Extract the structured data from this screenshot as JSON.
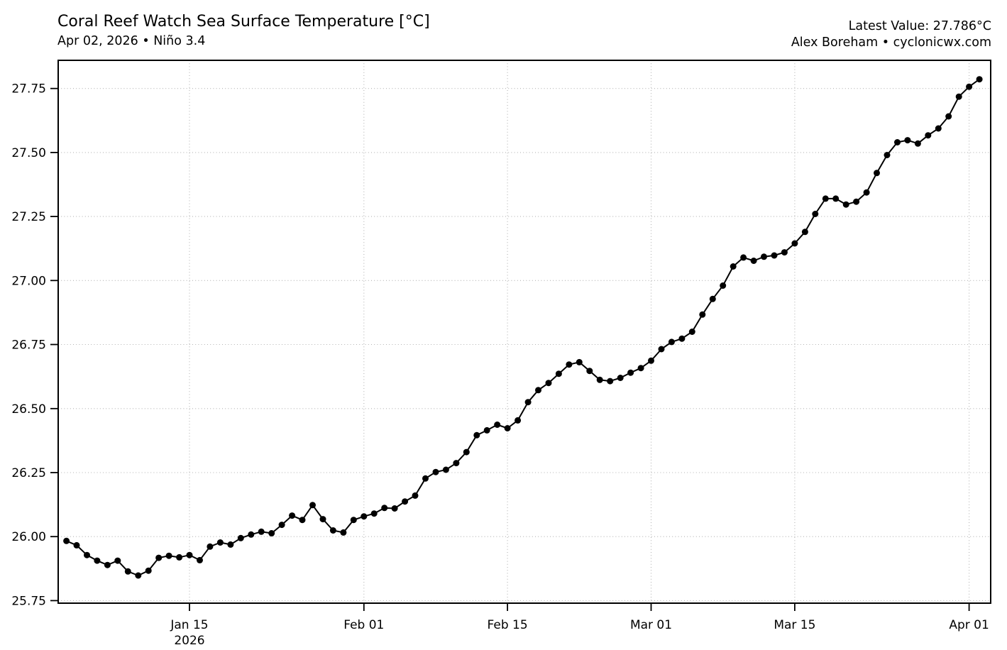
{
  "header": {
    "title": "Coral Reef Watch Sea Surface Temperature [°C]",
    "subtitle": "Apr 02, 2026 • Niño 3.4",
    "latest_value_label": "Latest Value: 27.786°C",
    "credit": "Alex Boreham • cyclonicwx.com"
  },
  "chart_data": {
    "type": "line",
    "title": "Coral Reef Watch Sea Surface Temperature [°C]",
    "subtitle": "Apr 02, 2026 • Niño 3.4",
    "series_name": "Niño 3.4 SST",
    "units": "°C",
    "xlabel": "",
    "ylabel": "",
    "grid": "dotted",
    "legend": "none",
    "line_color": "#000000",
    "marker": "circle",
    "grid_color": "#b3b3b3",
    "latest_value": 27.786,
    "ylim": [
      25.74,
      27.86
    ],
    "xlim_days": [
      -0.8,
      90.1
    ],
    "yticks": [
      25.75,
      26.0,
      26.25,
      26.5,
      26.75,
      27.0,
      27.25,
      27.5,
      27.75
    ],
    "xticks": [
      {
        "day": 12,
        "label": "Jan 15",
        "year_label": "2026"
      },
      {
        "day": 29,
        "label": "Feb 01"
      },
      {
        "day": 43,
        "label": "Feb 15"
      },
      {
        "day": 57,
        "label": "Mar 01"
      },
      {
        "day": 71,
        "label": "Mar 15"
      },
      {
        "day": 88,
        "label": "Apr 01"
      }
    ],
    "x_dates": [
      "2026-01-03",
      "2026-01-04",
      "2026-01-05",
      "2026-01-06",
      "2026-01-07",
      "2026-01-08",
      "2026-01-09",
      "2026-01-10",
      "2026-01-11",
      "2026-01-12",
      "2026-01-13",
      "2026-01-14",
      "2026-01-15",
      "2026-01-16",
      "2026-01-17",
      "2026-01-18",
      "2026-01-19",
      "2026-01-20",
      "2026-01-21",
      "2026-01-22",
      "2026-01-23",
      "2026-01-24",
      "2026-01-25",
      "2026-01-26",
      "2026-01-27",
      "2026-01-28",
      "2026-01-29",
      "2026-01-30",
      "2026-01-31",
      "2026-02-01",
      "2026-02-02",
      "2026-02-03",
      "2026-02-04",
      "2026-02-05",
      "2026-02-06",
      "2026-02-07",
      "2026-02-08",
      "2026-02-09",
      "2026-02-10",
      "2026-02-11",
      "2026-02-12",
      "2026-02-13",
      "2026-02-14",
      "2026-02-15",
      "2026-02-16",
      "2026-02-17",
      "2026-02-18",
      "2026-02-19",
      "2026-02-20",
      "2026-02-21",
      "2026-02-22",
      "2026-02-23",
      "2026-02-24",
      "2026-02-25",
      "2026-02-26",
      "2026-02-27",
      "2026-02-28",
      "2026-03-01",
      "2026-03-02",
      "2026-03-03",
      "2026-03-04",
      "2026-03-05",
      "2026-03-06",
      "2026-03-07",
      "2026-03-08",
      "2026-03-09",
      "2026-03-10",
      "2026-03-11",
      "2026-03-12",
      "2026-03-13",
      "2026-03-14",
      "2026-03-15",
      "2026-03-16",
      "2026-03-17",
      "2026-03-18",
      "2026-03-19",
      "2026-03-20",
      "2026-03-21",
      "2026-03-22",
      "2026-03-23",
      "2026-03-24",
      "2026-03-25",
      "2026-03-26",
      "2026-03-27",
      "2026-03-28",
      "2026-03-29",
      "2026-03-30",
      "2026-03-31",
      "2026-04-01",
      "2026-04-02"
    ],
    "values": [
      25.983,
      25.966,
      25.928,
      25.906,
      25.889,
      25.906,
      25.864,
      25.848,
      25.867,
      25.917,
      25.925,
      25.919,
      25.928,
      25.908,
      25.961,
      25.977,
      25.969,
      25.994,
      26.008,
      26.019,
      26.013,
      26.046,
      26.082,
      26.065,
      26.123,
      26.068,
      26.024,
      26.016,
      26.065,
      26.079,
      26.09,
      26.112,
      26.11,
      26.137,
      26.16,
      26.227,
      26.252,
      26.261,
      26.287,
      26.33,
      26.396,
      26.415,
      26.437,
      26.423,
      26.454,
      26.525,
      26.572,
      26.6,
      26.636,
      26.672,
      26.681,
      26.647,
      26.612,
      26.607,
      26.62,
      26.64,
      26.658,
      26.687,
      26.732,
      26.76,
      26.773,
      26.8,
      26.867,
      26.928,
      26.98,
      27.055,
      27.09,
      27.077,
      27.093,
      27.098,
      27.11,
      27.145,
      27.19,
      27.26,
      27.32,
      27.32,
      27.297,
      27.308,
      27.344,
      27.42,
      27.49,
      27.54,
      27.548,
      27.535,
      27.567,
      27.594,
      27.641,
      27.718,
      27.757,
      27.786
    ]
  }
}
